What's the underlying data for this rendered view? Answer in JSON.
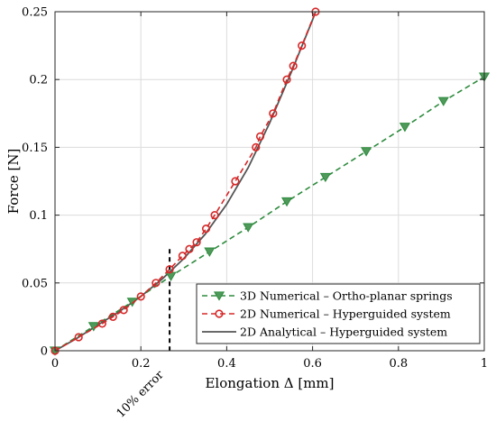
{
  "chart_data": {
    "type": "line",
    "title": "",
    "xlabel": "Elongation Δ [mm]",
    "ylabel": "Force [N]",
    "xlim": [
      0,
      1
    ],
    "ylim": [
      0,
      0.25
    ],
    "xticks": [
      0,
      0.2,
      0.4,
      0.6,
      0.8,
      1
    ],
    "xtick_labels": [
      "0",
      "0.2",
      "0.4",
      "0.6",
      "0.8",
      "1"
    ],
    "yticks": [
      0,
      0.05,
      0.1,
      0.15,
      0.2,
      0.25
    ],
    "ytick_labels": [
      "0",
      "0.05",
      "0.1",
      "0.15",
      "0.2",
      "0.25"
    ],
    "grid": true,
    "legend_position": "bottom-right",
    "series": [
      {
        "name": "3D Numerical – Ortho-planar springs",
        "color": "#2e8b3e",
        "line_style": "dashed",
        "marker": "triangle-down",
        "x": [
          0,
          0.09,
          0.18,
          0.27,
          0.36,
          0.45,
          0.54,
          0.63,
          0.725,
          0.815,
          0.905,
          1.0
        ],
        "y": [
          0,
          0.018,
          0.036,
          0.055,
          0.073,
          0.091,
          0.11,
          0.128,
          0.147,
          0.165,
          0.184,
          0.202
        ]
      },
      {
        "name": "2D Numerical – Hyperguided system",
        "color": "#d62828",
        "line_style": "dashed",
        "marker": "circle-open",
        "x": [
          0,
          0.055,
          0.11,
          0.135,
          0.16,
          0.2,
          0.235,
          0.267,
          0.297,
          0.313,
          0.33,
          0.352,
          0.372,
          0.42,
          0.468,
          0.478,
          0.508,
          0.54,
          0.555,
          0.575,
          0.607
        ],
        "y": [
          0,
          0.01,
          0.02,
          0.025,
          0.03,
          0.04,
          0.05,
          0.06,
          0.07,
          0.075,
          0.08,
          0.09,
          0.1,
          0.125,
          0.15,
          0.158,
          0.175,
          0.2,
          0.21,
          0.225,
          0.25
        ]
      },
      {
        "name": "2D Analytical – Hyperguided system",
        "color": "#555555",
        "line_style": "solid",
        "marker": "none",
        "x": [
          0,
          0.05,
          0.1,
          0.15,
          0.2,
          0.25,
          0.3,
          0.35,
          0.4,
          0.45,
          0.5,
          0.55,
          0.6,
          0.607
        ],
        "y": [
          0,
          0.009,
          0.019,
          0.029,
          0.04,
          0.053,
          0.068,
          0.086,
          0.108,
          0.135,
          0.168,
          0.205,
          0.244,
          0.25
        ]
      }
    ],
    "annotations": [
      {
        "text": "10% error",
        "x": 0.267,
        "style": "vertical dashed line at this x",
        "y_range": [
          0,
          0.075
        ]
      }
    ]
  }
}
